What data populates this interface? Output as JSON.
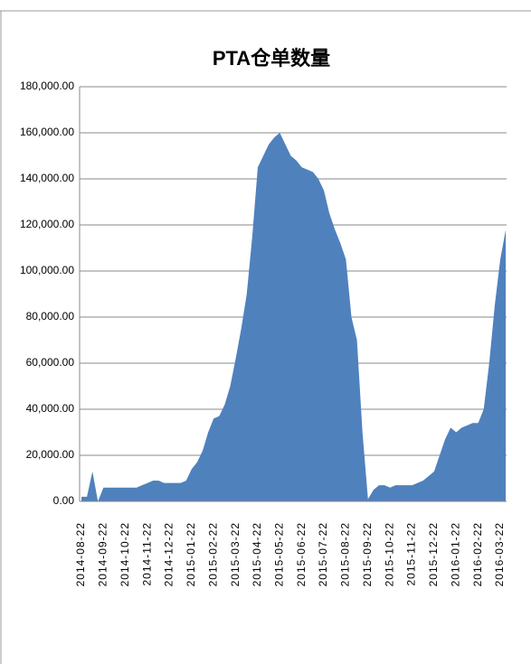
{
  "chart_data": {
    "type": "area",
    "title": "PTA仓单数量",
    "color": "#4f81bd",
    "grid": true,
    "categories": [
      "2014-08-22",
      null,
      null,
      null,
      "2014-09-22",
      null,
      null,
      null,
      "2014-10-22",
      null,
      null,
      null,
      "2014-11-22",
      null,
      null,
      null,
      "2014-12-22",
      null,
      null,
      null,
      "2015-01-22",
      null,
      null,
      null,
      "2015-02-22",
      null,
      null,
      null,
      "2015-03-22",
      null,
      null,
      null,
      "2015-04-22",
      null,
      null,
      null,
      "2015-05-22",
      null,
      null,
      null,
      "2015-06-22",
      null,
      null,
      null,
      "2015-07-22",
      null,
      null,
      null,
      "2015-08-22",
      null,
      null,
      null,
      "2015-09-22",
      null,
      null,
      null,
      "2015-10-22",
      null,
      null,
      null,
      "2015-11-22",
      null,
      null,
      null,
      "2015-12-22",
      null,
      null,
      null,
      "2016-01-22",
      null,
      null,
      null,
      "2016-02-22",
      null,
      null,
      null,
      "2016-03-22",
      null
    ],
    "values": [
      2000,
      2000,
      13000,
      0,
      6000,
      6000,
      6000,
      6000,
      6000,
      6000,
      6000,
      7000,
      8000,
      9000,
      9000,
      8000,
      8000,
      8000,
      8000,
      9000,
      14000,
      17000,
      22000,
      30000,
      36000,
      37000,
      42000,
      50000,
      62000,
      75000,
      90000,
      115000,
      145000,
      150000,
      155000,
      158000,
      160000,
      155000,
      150000,
      148000,
      145000,
      144000,
      143000,
      140000,
      135000,
      125000,
      118000,
      112000,
      105000,
      80000,
      70000,
      30000,
      1000,
      5000,
      7000,
      7000,
      6000,
      7000,
      7000,
      7000,
      7000,
      8000,
      9000,
      11000,
      13000,
      20000,
      27000,
      32000,
      30000,
      32000,
      33000,
      34000,
      34000,
      40000,
      60000,
      85000,
      105000,
      118000
    ],
    "ylim": [
      0,
      180000
    ],
    "yticks": [
      {
        "value": 0,
        "label": "0.00"
      },
      {
        "value": 20000,
        "label": "20,000.00"
      },
      {
        "value": 40000,
        "label": "40,000.00"
      },
      {
        "value": 60000,
        "label": "60,000.00"
      },
      {
        "value": 80000,
        "label": "80,000.00"
      },
      {
        "value": 100000,
        "label": "100,000.00"
      },
      {
        "value": 120000,
        "label": "120,000.00"
      },
      {
        "value": 140000,
        "label": "140,000.00"
      },
      {
        "value": 160000,
        "label": "160,000.00"
      },
      {
        "value": 180000,
        "label": "180,000.00"
      }
    ]
  }
}
